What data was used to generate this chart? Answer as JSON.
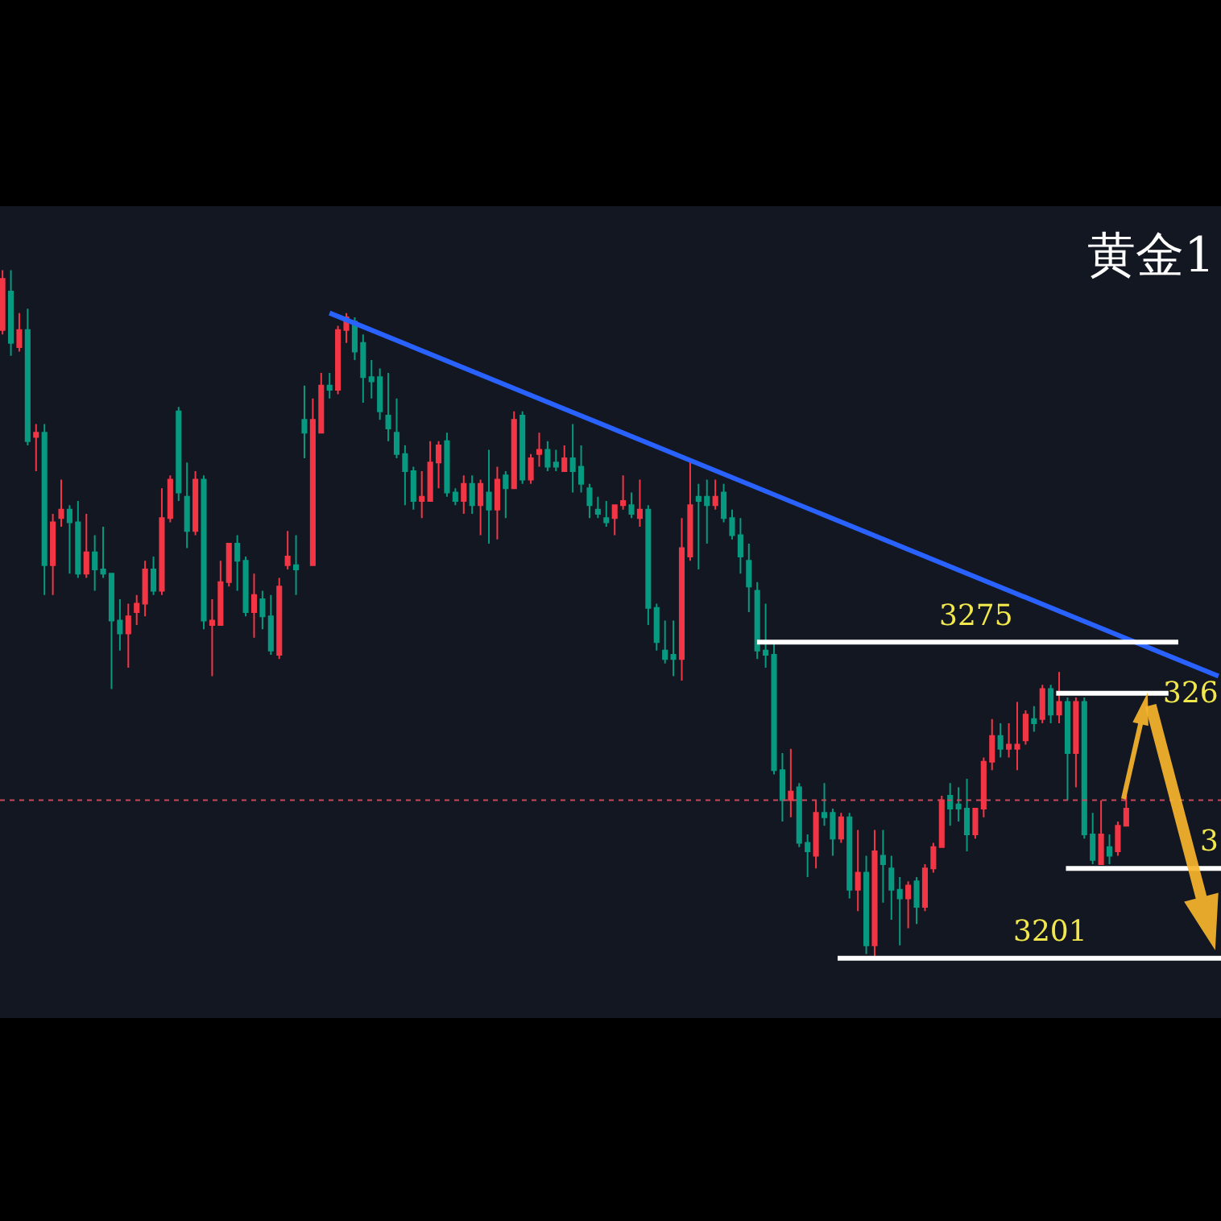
{
  "chart_data": {
    "type": "candlestick",
    "title": "黄金1",
    "tick_labels": false,
    "ylim": [
      3187,
      3377
    ],
    "categories": [
      null,
      null,
      null,
      null,
      null,
      null,
      null,
      null,
      null,
      null,
      null,
      null,
      null,
      null,
      null,
      null,
      null,
      null,
      null,
      null,
      null,
      null,
      null,
      null,
      null,
      null,
      null,
      null,
      null,
      null,
      null,
      null,
      null,
      null,
      null,
      null,
      null,
      null,
      null,
      null,
      null,
      null,
      null,
      null,
      null,
      null,
      null,
      null,
      null,
      null,
      null,
      null,
      null,
      null,
      null,
      null,
      null,
      null,
      null,
      null,
      null,
      null,
      null,
      null,
      null,
      null,
      null,
      null,
      null,
      null,
      null,
      null,
      null,
      null,
      null,
      null,
      null,
      null,
      null,
      null,
      null,
      null,
      null,
      null,
      null,
      null,
      null,
      null,
      null,
      null,
      null,
      null,
      null,
      null,
      null,
      null,
      null,
      null,
      null,
      null,
      null,
      null,
      null,
      null,
      null,
      null,
      null,
      null,
      null,
      null,
      null,
      null,
      null,
      null,
      null,
      null,
      null,
      null,
      null,
      null,
      null,
      null,
      null,
      null,
      null,
      null,
      null,
      null,
      null,
      null,
      null,
      null,
      null,
      null,
      null,
      null,
      null,
      null,
      null,
      null,
      null,
      null,
      null,
      null,
      null,
      null
    ],
    "ohlc": [
      [
        3348,
        3362,
        3347,
        3360
      ],
      [
        3357,
        3362,
        3342,
        3345
      ],
      [
        3344,
        3352,
        3343,
        3348
      ],
      [
        3348,
        3353,
        3321,
        3322
      ],
      [
        3323,
        3326,
        3315,
        3324
      ],
      [
        3324,
        3326,
        3286,
        3293
      ],
      [
        3293,
        3305,
        3286,
        3303
      ],
      [
        3304,
        3313,
        3302,
        3306
      ],
      [
        3306,
        3307,
        3291,
        3303
      ],
      [
        3303,
        3308,
        3290,
        3291
      ],
      [
        3291,
        3305,
        3290,
        3296
      ],
      [
        3296,
        3300,
        3287,
        3292
      ],
      [
        3292,
        3302,
        3290,
        3291
      ],
      [
        3291,
        3291,
        3264,
        3280
      ],
      [
        3280,
        3285,
        3273,
        3277
      ],
      [
        3277,
        3284,
        3269,
        3281
      ],
      [
        3282,
        3286,
        3279,
        3284
      ],
      [
        3284,
        3294,
        3281,
        3292
      ],
      [
        3292,
        3295,
        3286,
        3287
      ],
      [
        3287,
        3311,
        3286,
        3304
      ],
      [
        3304,
        3314,
        3303,
        3313
      ],
      [
        3329,
        3330,
        3308,
        3310
      ],
      [
        3309,
        3317,
        3297,
        3301
      ],
      [
        3301,
        3315,
        3300,
        3313
      ],
      [
        3313,
        3314,
        3278,
        3280
      ],
      [
        3279,
        3285,
        3267,
        3280
      ],
      [
        3279,
        3294,
        3279,
        3289
      ],
      [
        3289,
        3298,
        3288,
        3298
      ],
      [
        3298,
        3300,
        3287,
        3294
      ],
      [
        3294,
        3295,
        3281,
        3282
      ],
      [
        3282,
        3291,
        3276,
        3286
      ],
      [
        3285,
        3287,
        3278,
        3281
      ],
      [
        3281,
        3286,
        3272,
        3273
      ],
      [
        3272,
        3290,
        3271,
        3288
      ],
      [
        3293,
        3301,
        3292,
        3295
      ],
      [
        3293,
        3300,
        3286,
        3292
      ],
      [
        3327,
        3335,
        3318,
        3324
      ],
      [
        3293,
        3332,
        3293,
        3327
      ],
      [
        3324,
        3338,
        3324,
        3335
      ],
      [
        3335,
        3338,
        3332,
        3334
      ],
      [
        3334,
        3349,
        3333,
        3348
      ],
      [
        3348,
        3352,
        3345,
        3351
      ],
      [
        3350,
        3351,
        3341,
        3343
      ],
      [
        3345,
        3347,
        3331,
        3337
      ],
      [
        3337,
        3341,
        3332,
        3336
      ],
      [
        3337,
        3339,
        3327,
        3329
      ],
      [
        3328,
        3338,
        3322,
        3325
      ],
      [
        3324,
        3332,
        3318,
        3319
      ],
      [
        3319,
        3321,
        3307,
        3315
      ],
      [
        3315,
        3316,
        3306,
        3308
      ],
      [
        3308,
        3315,
        3304,
        3309
      ],
      [
        3308,
        3322,
        3308,
        3317
      ],
      [
        3317,
        3322,
        3311,
        3321
      ],
      [
        3322,
        3324,
        3309,
        3310
      ],
      [
        3310,
        3311,
        3307,
        3308
      ],
      [
        3308,
        3314,
        3305,
        3312
      ],
      [
        3312,
        3314,
        3305,
        3307
      ],
      [
        3307,
        3313,
        3300,
        3312
      ],
      [
        3310,
        3320,
        3298,
        3306
      ],
      [
        3306,
        3316,
        3299,
        3313
      ],
      [
        3314,
        3315,
        3304,
        3311
      ],
      [
        3311,
        3329,
        3311,
        3327
      ],
      [
        3328,
        3329,
        3312,
        3313
      ],
      [
        3313,
        3319,
        3312,
        3318
      ],
      [
        3319,
        3324,
        3316,
        3320
      ],
      [
        3320,
        3322,
        3315,
        3316
      ],
      [
        3317,
        3320,
        3315,
        3316
      ],
      [
        3315,
        3321,
        3315,
        3318
      ],
      [
        3318,
        3326,
        3310,
        3315
      ],
      [
        3316,
        3321,
        3310,
        3312
      ],
      [
        3311,
        3312,
        3304,
        3307
      ],
      [
        3306,
        3309,
        3304,
        3305
      ],
      [
        3304,
        3308,
        3302,
        3303
      ],
      [
        3304,
        3307,
        3300,
        3307
      ],
      [
        3307,
        3314,
        3306,
        3308
      ],
      [
        3307,
        3310,
        3304,
        3305
      ],
      [
        3304,
        3313,
        3302,
        3306
      ],
      [
        3306,
        3307,
        3279,
        3283
      ],
      [
        3283,
        3284,
        3273,
        3275
      ],
      [
        3273,
        3280,
        3270,
        3271
      ],
      [
        3272,
        3280,
        3267,
        3271
      ],
      [
        3271,
        3304,
        3266,
        3297
      ],
      [
        3295,
        3318,
        3294,
        3307
      ],
      [
        3309,
        3312,
        3292,
        3308
      ],
      [
        3309,
        3313,
        3298,
        3307
      ],
      [
        3307,
        3313,
        3306,
        3309
      ],
      [
        3310,
        3312,
        3303,
        3304
      ],
      [
        3304,
        3306,
        3299,
        3300
      ],
      [
        3300,
        3304,
        3291,
        3295
      ],
      [
        3294,
        3298,
        3282,
        3288
      ],
      [
        3287,
        3289,
        3271,
        3273
      ],
      [
        3273,
        3284,
        3269,
        3272
      ],
      [
        3272,
        3275,
        3244,
        3245
      ],
      [
        3245,
        3249,
        3233,
        3238
      ],
      [
        3238,
        3250,
        3234,
        3240
      ],
      [
        3241,
        3242,
        3227,
        3228
      ],
      [
        3228,
        3230,
        3220,
        3226
      ],
      [
        3225,
        3238,
        3222,
        3235
      ],
      [
        3235,
        3242,
        3232,
        3234
      ],
      [
        3235,
        3236,
        3225,
        3229
      ],
      [
        3229,
        3235,
        3228,
        3234
      ],
      [
        3234,
        3235,
        3215,
        3217
      ],
      [
        3217,
        3231,
        3212,
        3221
      ],
      [
        3221,
        3225,
        3202,
        3204
      ],
      [
        3204,
        3231,
        3201,
        3226
      ],
      [
        3225,
        3231,
        3214,
        3223
      ],
      [
        3222,
        3225,
        3210,
        3217
      ],
      [
        3217,
        3220,
        3204,
        3215
      ],
      [
        3215,
        3219,
        3208,
        3218
      ],
      [
        3219,
        3220,
        3209,
        3213
      ],
      [
        3213,
        3223,
        3212,
        3222
      ],
      [
        3222,
        3228,
        3221,
        3227
      ],
      [
        3227,
        3239,
        3227,
        3238
      ],
      [
        3239,
        3242,
        3232,
        3236
      ],
      [
        3237,
        3241,
        3233,
        3236
      ],
      [
        3236,
        3243,
        3226,
        3230
      ],
      [
        3230,
        3236,
        3229,
        3236
      ],
      [
        3236,
        3248,
        3234,
        3247
      ],
      [
        3247,
        3257,
        3245,
        3253
      ],
      [
        3253,
        3256,
        3248,
        3250
      ],
      [
        3250,
        3256,
        3248,
        3251
      ],
      [
        3250,
        3261,
        3245,
        3251
      ],
      [
        3252,
        3259,
        3251,
        3258
      ],
      [
        3257,
        3260,
        3254,
        3256
      ],
      [
        3257,
        3265,
        3256,
        3264
      ],
      [
        3264,
        3265,
        3256,
        3258
      ],
      [
        3258,
        3268,
        3256,
        3261
      ],
      [
        3261,
        3262,
        3238,
        3249
      ],
      [
        3249,
        3262,
        3241,
        3261
      ],
      [
        3261,
        3262,
        3229,
        3230
      ],
      [
        3230,
        3235,
        3223,
        3224
      ],
      [
        3223,
        3238,
        3223,
        3230
      ],
      [
        3227,
        3230,
        3223,
        3225
      ],
      [
        3226,
        3233,
        3225,
        3232
      ],
      [
        3232,
        3239,
        3232,
        3236
      ],
      null,
      null,
      null,
      null,
      null,
      null,
      null,
      null,
      null,
      null,
      null
    ],
    "colors": [
      "#f23645",
      "#089981",
      "#f23645",
      "#089981",
      "#f23645",
      "#089981",
      "#f23645",
      "#f23645",
      "#089981",
      "#089981",
      "#f23645",
      "#089981",
      "#089981",
      "#089981",
      "#089981",
      "#f23645",
      "#f23645",
      "#f23645",
      "#089981",
      "#f23645",
      "#f23645",
      "#089981",
      "#089981",
      "#f23645",
      "#089981",
      "#f23645",
      "#f23645",
      "#f23645",
      "#089981",
      "#089981",
      "#f23645",
      "#089981",
      "#089981",
      "#f23645",
      "#f23645",
      "#089981",
      "#089981",
      "#f23645",
      "#f23645",
      "#089981",
      "#f23645",
      "#f23645",
      "#089981",
      "#089981",
      "#089981",
      "#089981",
      "#089981",
      "#089981",
      "#089981",
      "#089981",
      "#f23645",
      "#f23645",
      "#f23645",
      "#089981",
      "#089981",
      "#f23645",
      "#089981",
      "#f23645",
      "#089981",
      "#f23645",
      "#089981",
      "#f23645",
      "#089981",
      "#f23645",
      "#f23645",
      "#089981",
      "#089981",
      "#f23645",
      "#089981",
      "#089981",
      "#089981",
      "#089981",
      "#089981",
      "#f23645",
      "#f23645",
      "#089981",
      "#f23645",
      "#089981",
      "#089981",
      "#089981",
      "#089981",
      "#f23645",
      "#f23645",
      "#089981",
      "#089981",
      "#f23645",
      "#089981",
      "#089981",
      "#089981",
      "#089981",
      "#089981",
      "#089981",
      "#089981",
      "#089981",
      "#f23645",
      "#089981",
      "#089981",
      "#f23645",
      "#089981",
      "#089981",
      "#f23645",
      "#089981",
      "#f23645",
      "#089981",
      "#f23645",
      "#089981",
      "#089981",
      "#089981",
      "#f23645",
      "#089981",
      "#f23645",
      "#f23645",
      "#f23645",
      "#089981",
      "#089981",
      "#089981",
      "#f23645",
      "#f23645",
      "#f23645",
      "#089981",
      "#f23645",
      "#f23645",
      "#f23645",
      "#089981",
      "#f23645",
      "#089981",
      "#f23645",
      "#089981",
      "#f23645",
      "#089981",
      "#089981",
      "#f23645",
      "#089981",
      "#f23645",
      "#f23645",
      null,
      null,
      null,
      null,
      null,
      null,
      null,
      null,
      null,
      null,
      null
    ],
    "series": [
      {
        "type": "line",
        "color": "#2962ff",
        "values": [
          null,
          null,
          null,
          null,
          null,
          null,
          null,
          null,
          null,
          null,
          null,
          null,
          null,
          null,
          null,
          null,
          null,
          null,
          null,
          null,
          null,
          null,
          null,
          null,
          null,
          null,
          null,
          null,
          null,
          null,
          null,
          null,
          null,
          null,
          null,
          null,
          null,
          null,
          null,
          3352,
          null,
          null,
          null,
          null,
          null,
          null,
          null,
          null,
          null,
          null,
          null,
          null,
          null,
          null,
          null,
          null,
          null,
          null,
          null,
          null,
          null,
          null,
          null,
          null,
          null,
          null,
          null,
          null,
          null,
          null,
          null,
          null,
          null,
          null,
          null,
          null,
          null,
          null,
          null,
          null,
          null,
          null,
          null,
          null,
          null,
          null,
          null,
          null,
          null,
          null,
          null,
          null,
          null,
          null,
          null,
          null,
          null,
          null,
          null,
          null,
          null,
          null,
          null,
          null,
          null,
          null,
          null,
          null,
          null,
          null,
          null,
          null,
          null,
          null,
          null,
          null,
          null,
          null,
          null,
          null,
          null,
          null,
          null,
          null,
          null,
          null,
          null,
          null,
          null,
          null,
          null,
          null,
          null,
          null,
          null,
          null,
          null,
          null,
          null,
          null,
          null,
          null,
          null,
          null,
          null,
          3267
        ]
      }
    ],
    "annotations": [
      "326",
      "3"
    ],
    "ref_lines": [
      {
        "axis": "y",
        "value": 3275,
        "label": "3275",
        "color": "#ffffff"
      },
      {
        "axis": "y",
        "value": 3263,
        "color": "#ffffff"
      },
      {
        "axis": "y",
        "value": 3238,
        "color": "#c8485a",
        "line_style": "dotted"
      },
      {
        "axis": "y",
        "value": 3222,
        "color": "#ffffff"
      },
      {
        "axis": "y",
        "value": 3201,
        "label": "3201",
        "color": "#ffffff"
      }
    ]
  }
}
